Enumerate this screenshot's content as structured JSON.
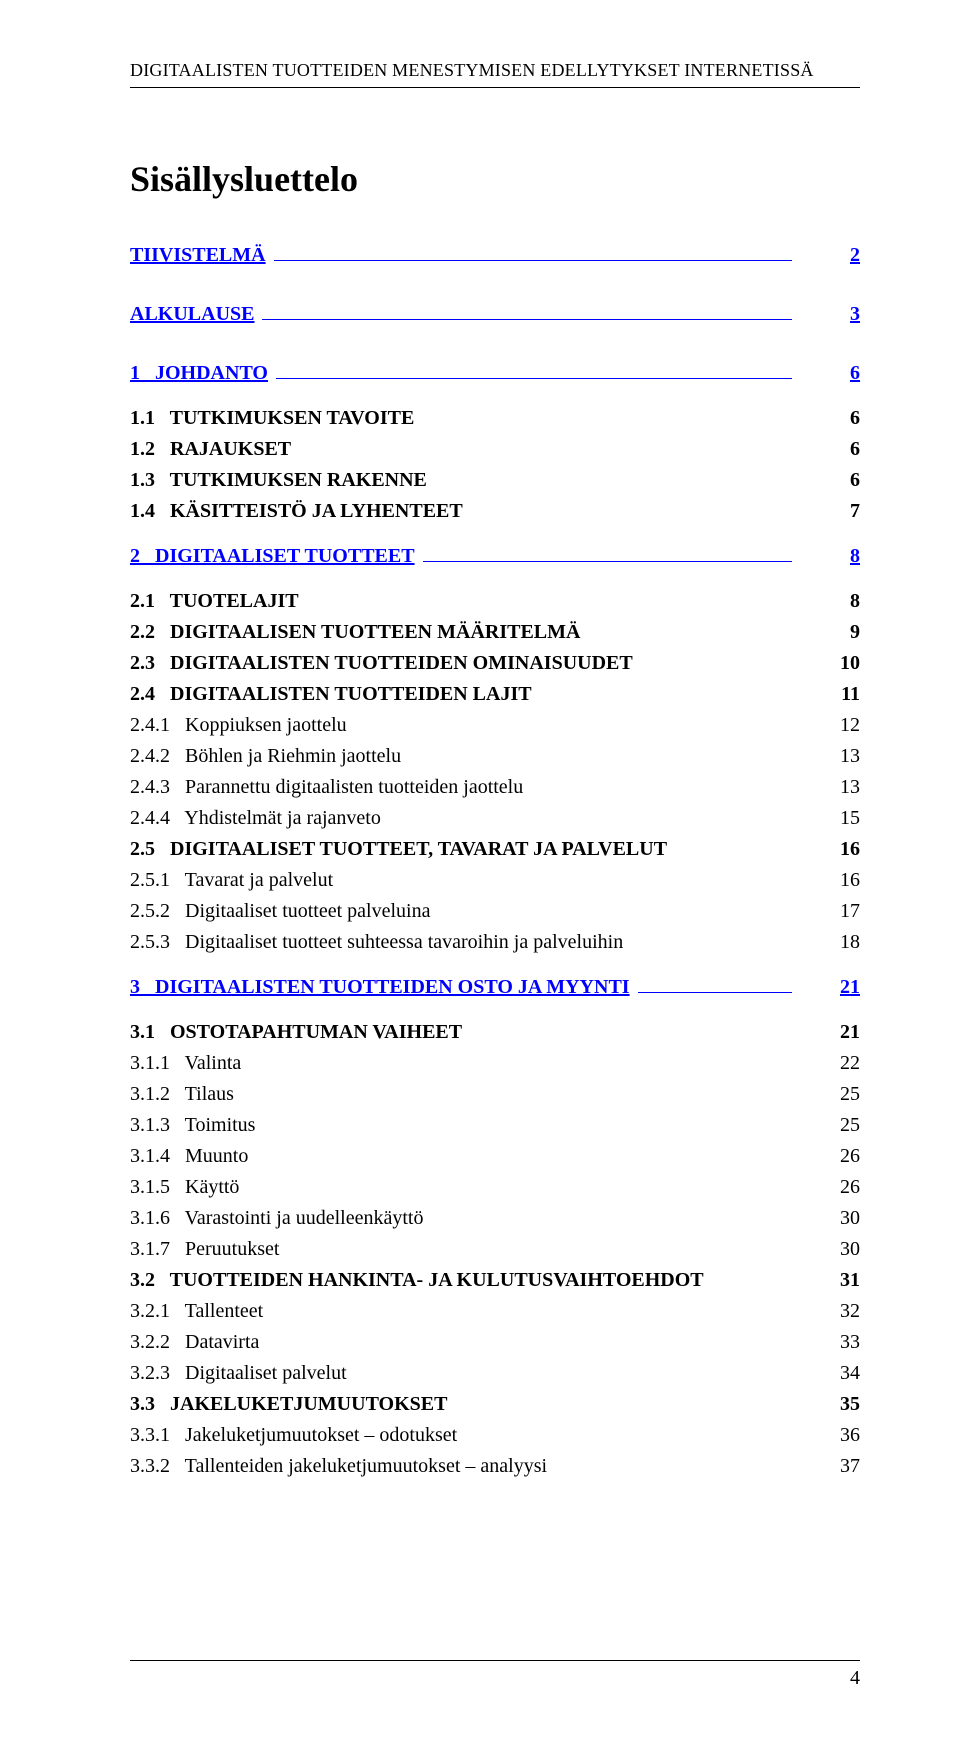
{
  "running_head": "DIGITAALISTEN TUOTTEIDEN MENESTYMISEN EDELLYTYKSET INTERNETISSÄ",
  "title": "Sisällysluettelo",
  "page_number": "4",
  "toc": [
    {
      "kind": "rule-line",
      "label": "TIIVISTELMÄ",
      "page": "2",
      "link": true,
      "bold": true
    },
    {
      "kind": "gap-lg"
    },
    {
      "kind": "rule-line",
      "label": "ALKULAUSE",
      "page": "3",
      "link": true,
      "bold": true
    },
    {
      "kind": "gap-lg"
    },
    {
      "kind": "rule-line",
      "label": "1   JOHDANTO",
      "page": "6",
      "link": true,
      "bold": true
    },
    {
      "kind": "gap-md"
    },
    {
      "kind": "plain",
      "label": "1.1   TUTKIMUKSEN TAVOITE",
      "page": "6",
      "scaps": true,
      "bold": true
    },
    {
      "kind": "plain",
      "label": "1.2   RAJAUKSET",
      "page": "6",
      "scaps": true,
      "bold": true
    },
    {
      "kind": "plain",
      "label": "1.3   TUTKIMUKSEN RAKENNE",
      "page": "6",
      "scaps": true,
      "bold": true
    },
    {
      "kind": "plain",
      "label": "1.4   KÄSITTEISTÖ JA LYHENTEET",
      "page": "7",
      "scaps": true,
      "bold": true
    },
    {
      "kind": "gap-md"
    },
    {
      "kind": "rule-line",
      "label": "2   DIGITAALISET TUOTTEET",
      "page": "8",
      "link": true,
      "bold": true
    },
    {
      "kind": "gap-md"
    },
    {
      "kind": "plain",
      "label": "2.1   TUOTELAJIT",
      "page": "8",
      "scaps": true,
      "bold": true
    },
    {
      "kind": "plain",
      "label": "2.2   DIGITAALISEN TUOTTEEN MÄÄRITELMÄ",
      "page": "9",
      "scaps": true,
      "bold": true
    },
    {
      "kind": "plain",
      "label": "2.3   DIGITAALISTEN TUOTTEIDEN OMINAISUUDET",
      "page": "10",
      "scaps": true,
      "bold": true
    },
    {
      "kind": "plain",
      "label": "2.4   DIGITAALISTEN TUOTTEIDEN LAJIT",
      "page": "11",
      "scaps": true,
      "bold": true
    },
    {
      "kind": "plain",
      "label": "2.4.1   Koppiuksen jaottelu",
      "page": "12"
    },
    {
      "kind": "plain",
      "label": "2.4.2   Böhlen ja Riehmin jaottelu",
      "page": "13"
    },
    {
      "kind": "plain",
      "label": "2.4.3   Parannettu digitaalisten tuotteiden jaottelu",
      "page": "13"
    },
    {
      "kind": "plain",
      "label": "2.4.4   Yhdistelmät ja rajanveto",
      "page": "15"
    },
    {
      "kind": "plain",
      "label": "2.5   DIGITAALISET TUOTTEET, TAVARAT JA PALVELUT",
      "page": "16",
      "scaps": true,
      "bold": true
    },
    {
      "kind": "plain",
      "label": "2.5.1   Tavarat ja palvelut",
      "page": "16"
    },
    {
      "kind": "plain",
      "label": "2.5.2   Digitaaliset tuotteet palveluina",
      "page": "17"
    },
    {
      "kind": "plain",
      "label": "2.5.3   Digitaaliset tuotteet suhteessa tavaroihin ja palveluihin",
      "page": "18"
    },
    {
      "kind": "gap-md"
    },
    {
      "kind": "rule-line",
      "label": "3   DIGITAALISTEN TUOTTEIDEN OSTO JA MYYNTI",
      "page": "21",
      "link": true,
      "bold": true
    },
    {
      "kind": "gap-md"
    },
    {
      "kind": "plain",
      "label": "3.1   OSTOTAPAHTUMAN VAIHEET",
      "page": "21",
      "scaps": true,
      "bold": true
    },
    {
      "kind": "plain",
      "label": "3.1.1   Valinta",
      "page": "22"
    },
    {
      "kind": "plain",
      "label": "3.1.2   Tilaus",
      "page": "25"
    },
    {
      "kind": "plain",
      "label": "3.1.3   Toimitus",
      "page": "25"
    },
    {
      "kind": "plain",
      "label": "3.1.4   Muunto",
      "page": "26"
    },
    {
      "kind": "plain",
      "label": "3.1.5   Käyttö",
      "page": "26"
    },
    {
      "kind": "plain",
      "label": "3.1.6   Varastointi ja uudelleenkäyttö",
      "page": "30"
    },
    {
      "kind": "plain",
      "label": "3.1.7   Peruutukset",
      "page": "30"
    },
    {
      "kind": "plain",
      "label": "3.2   TUOTTEIDEN HANKINTA- JA KULUTUSVAIHTOEHDOT",
      "page": "31",
      "scaps": true,
      "bold": true
    },
    {
      "kind": "plain",
      "label": "3.2.1   Tallenteet",
      "page": "32"
    },
    {
      "kind": "plain",
      "label": "3.2.2   Datavirta",
      "page": "33"
    },
    {
      "kind": "plain",
      "label": "3.2.3   Digitaaliset palvelut",
      "page": "34"
    },
    {
      "kind": "plain",
      "label": "3.3   JAKELUKETJUMUUTOKSET",
      "page": "35",
      "scaps": true,
      "bold": true
    },
    {
      "kind": "plain",
      "label": "3.3.1   Jakeluketjumuutokset – odotukset",
      "page": "36"
    },
    {
      "kind": "plain",
      "label": "3.3.2   Tallenteiden jakeluketjumuutokset – analyysi",
      "page": "37"
    }
  ]
}
